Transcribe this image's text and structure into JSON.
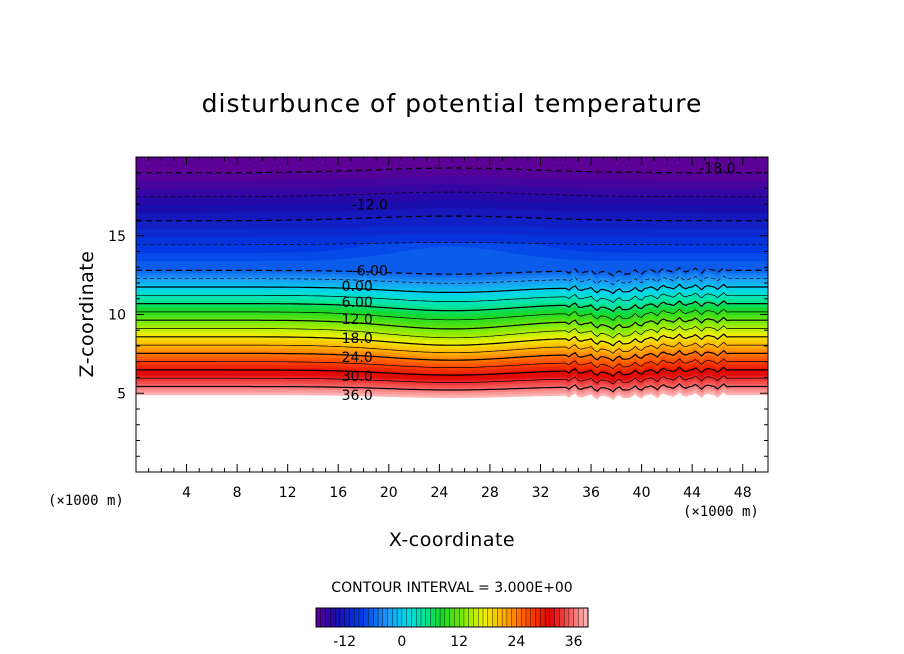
{
  "chart_data": {
    "type": "contour",
    "title": "disturbunce of potential temperature",
    "xlabel": "X-coordinate",
    "ylabel": "Z-coordinate",
    "x_unit": "(×1000 m)",
    "y_unit": "(×1000 m)",
    "xlim": [
      0,
      50
    ],
    "ylim": [
      0,
      20
    ],
    "x_ticks": [
      4,
      8,
      12,
      16,
      20,
      24,
      28,
      32,
      36,
      40,
      44,
      48
    ],
    "y_ticks": [
      5,
      10,
      15
    ],
    "contour_interval_text": "CONTOUR INTERVAL = 3.000E+00",
    "value_range": [
      -18,
      39
    ],
    "colorbar_ticks": [
      "-12",
      "0",
      "12",
      "24",
      "36"
    ],
    "colorbar_tick_values": [
      -12,
      0,
      12,
      24,
      36
    ],
    "contour_labels": [
      {
        "text": "-18.0",
        "x": 46.0,
        "z": 19.3
      },
      {
        "text": "-12.0",
        "x": 18.5,
        "z": 17.0
      },
      {
        "text": "-6.00",
        "x": 18.5,
        "z": 12.8
      },
      {
        "text": "0.00",
        "x": 17.5,
        "z": 11.8
      },
      {
        "text": "6.00",
        "x": 17.5,
        "z": 10.8
      },
      {
        "text": "12.0",
        "x": 17.5,
        "z": 9.7
      },
      {
        "text": "18.0",
        "x": 17.5,
        "z": 8.5
      },
      {
        "text": "24.0",
        "x": 17.5,
        "z": 7.3
      },
      {
        "text": "30.0",
        "x": 17.5,
        "z": 6.1
      },
      {
        "text": "36.0",
        "x": 17.5,
        "z": 4.9
      }
    ]
  }
}
